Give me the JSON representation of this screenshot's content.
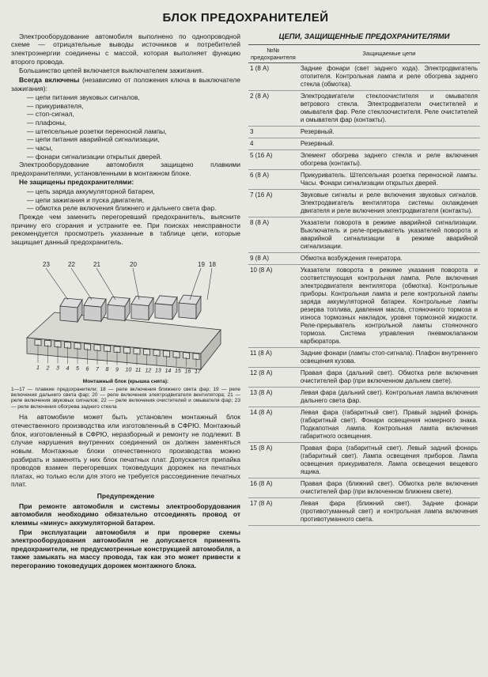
{
  "title": "БЛОК ПРЕДОХРАНИТЕЛЕЙ",
  "left": {
    "p1": "Электрооборудование автомобиля выполнено по однопроводной схеме — отрицательные выводы источников и потребителей электроэнергии соединены с массой, которая выполняет функцию второго провода.",
    "p2a": "Большинство цепей включается выключателем зажигания.",
    "p2b_bold": "Всегда включены",
    "p2b_rest": " (независимо от положения ключа в выключателе зажигания):",
    "list1": [
      "— цепи питания звуковых сигналов,",
      "— прикуривателя,",
      "— стоп-сигнал,",
      "— плафоны,",
      "— штепсельные розетки переносной лампы,",
      "— цепи питания аварийной сигнализации,",
      "— часы,",
      "— фонари сигнализации открытых дверей."
    ],
    "p3": "Электрооборудование автомобиля защищено плавкими предохранителями, установленными в монтажном блоке.",
    "p4_bold": "Не защищены предохранителями:",
    "list2": [
      "— цепь заряда аккумуляторной батареи,",
      "— цепи зажигания и пуска двигателя,",
      "— обмотка реле включения ближнего и дальнего света фар."
    ],
    "p5": "Прежде чем заменить перегоревший предохранитель, выясните причину его сгорания и устраните ее. При поисках неисправности рекомендуется просмотреть указанные в таблице цепи, которые защищает данный предохранитель.",
    "caption": "Монтажный блок (крышка снята):",
    "legend": "1—17 — плавкие предохранители; 18 — реле включения ближнего света фар; 19 — реле включения дальнего света фар; 20 — реле включения электродвигателя вентилятора; 21 — реле включения звуковых сигналов; 22 — реле включения очистителей и омывателя фар; 23 — реле включения обогрева заднего стекла",
    "p6": "На автомобиле может быть установлен монтажный блок отечественного производства или изготовленный в СФРЮ. Монтажный блок, изготовленный в СФРЮ, неразборный и ремонту не подлежит. В случае нарушения внутренних соединений он должен заменяться новым. Монтажные блоки отечественного производства можно разбирать и заменять у них блок печатных плат. Допускается припайка проводов взамен перегоревших токоведущих дорожек на печатных платах, но только если для этого не требуется рассоединение печатных плат.",
    "warning_title": "Предупреждение",
    "w1": "При ремонте автомобиля и системы электрооборудования автомобиля необходимо обязательно отсоединять провод от клеммы «минус» аккумуляторной батареи.",
    "w2": "При эксплуатации автомобиля и при проверке схемы электрооборудования автомобиля не допускается применять предохранители, не предусмотренные конструкцией автомобиля, а также замыкать на массу провода, так как это может привести к перегоранию токоведущих дорожек монтажного блока."
  },
  "right": {
    "title": "ЦЕПИ, ЗАЩИЩЕННЫЕ ПРЕДОХРАНИТЕЛЯМИ",
    "th1": "№№ предохранителя",
    "th2": "Защищаемые цепи",
    "rows": [
      {
        "n": "1 (8 А)",
        "t": "Задние фонари (свет заднего хода). Электродвигатель отопителя. Контрольная лампа и реле обогрева заднего стекла (обмотка)."
      },
      {
        "n": "2 (8 А)",
        "t": "Электродвигатели стеклоочистителя и омывателя ветрового стекла. Электродвигатели очистителей и омывателя фар. Реле стеклоочистителя. Реле очистителей и омывателя фар (контакты)."
      },
      {
        "n": "3",
        "t": "Резервный."
      },
      {
        "n": "4",
        "t": "Резервный."
      },
      {
        "n": "5 (16 А)",
        "t": "Элемент обогрева заднего стекла и реле включения обогрева (контакты)."
      },
      {
        "n": "6 (8 А)",
        "t": "Прикуриватель. Штепсельная розетка переносной лампы. Часы. Фонари сигнализации открытых дверей."
      },
      {
        "n": "7 (16 А)",
        "t": "Звуковые сигналы и реле включения звуковых сигналов. Электродвигатель вентилятора системы охлаждения двигателя и реле включения электродвигателя (контакты)."
      },
      {
        "n": "8 (8 А)",
        "t": "Указатели поворота в режиме аварийной сигнализации. Выключатель и реле-прерыватель указателей поворота и аварийной сигнализации в режиме аварийной сигнализации."
      },
      {
        "n": "9 (8 А)",
        "t": "Обмотка возбуждения генератора."
      },
      {
        "n": "10 (8 А)",
        "t": "Указатели поворота в режиме указания поворота и соответствующая контрольная лампа. Реле включения электродвигателя вентилятора (обмотка). Контрольные приборы. Контрольная лампа и реле контрольной лампы заряда аккумуляторной батареи. Контрольные лампы резерва топлива, давления масла, стояночного тормоза и износа тормозных накладок, уровня тормозной жидкости. Реле-прерыватель контрольной лампы стояночного тормоза. Система управления пневмоклапаном карбюратора."
      },
      {
        "n": "11 (8 А)",
        "t": "Задние фонари (лампы стоп-сигнала). Плафон внутреннего освещения кузова."
      },
      {
        "n": "12 (8 А)",
        "t": "Правая фара (дальний свет). Обмотка реле включения очистителей фар (при включенном дальнем свете)."
      },
      {
        "n": "13 (8 А)",
        "t": "Левая фара (дальний свет). Контрольная лампа включения дальнего света фар."
      },
      {
        "n": "14 (8 А)",
        "t": "Левая фара (габаритный свет). Правый задний фонарь (габаритный свет). Фонари освещения номерного знака. Подкапотная лампа. Контрольная лампа включения габаритного освещения."
      },
      {
        "n": "15 (8 А)",
        "t": "Правая фара (габаритный свет). Левый задний фонарь (габаритный свет). Лампа освещения приборов. Лампа освещения прикуривателя. Лампа освещения вещевого ящика."
      },
      {
        "n": "16 (8 А)",
        "t": "Правая фара (ближний свет). Обмотка реле включения очистителей фар (при включенном ближнем свете)."
      },
      {
        "n": "17 (8 А)",
        "t": "Левая фара (ближний свет). Задние фонари (противотуманный свет) и контрольная лампа включения противотуманного света."
      }
    ]
  },
  "diagram": {
    "labels_top": [
      "23",
      "22",
      "21",
      "20",
      "19",
      "18"
    ],
    "labels_bot": [
      "1",
      "2",
      "3",
      "4",
      "5",
      "6",
      "7",
      "8",
      "9",
      "10",
      "11",
      "12",
      "13",
      "14",
      "15",
      "16",
      "17"
    ]
  }
}
